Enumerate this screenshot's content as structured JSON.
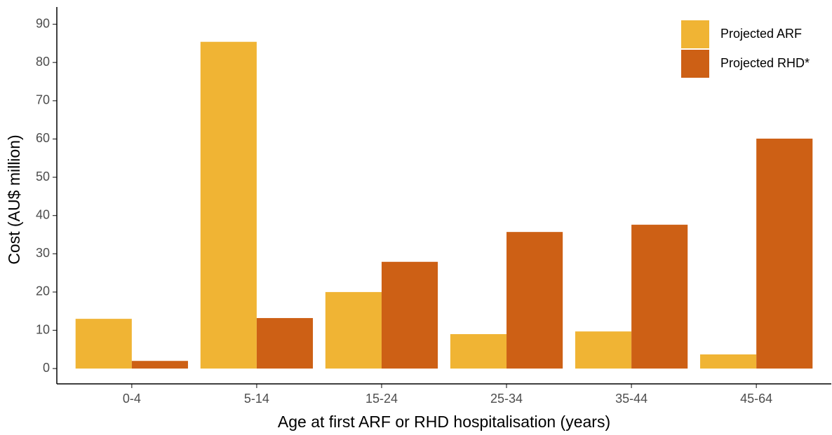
{
  "chart_data": {
    "type": "bar",
    "x_label": "Age at first ARF or RHD hospitalisation (years)",
    "y_label": "Cost (AU$ million)",
    "categories": [
      "0-4",
      "5-14",
      "15-24",
      "25-34",
      "35-44",
      "45-64"
    ],
    "series": [
      {
        "name": "Projected ARF",
        "color": "#f0b434",
        "values": [
          13.0,
          85.4,
          20.0,
          9.0,
          9.7,
          3.7
        ]
      },
      {
        "name": "Projected RHD*",
        "color": "#cd6015",
        "values": [
          2.0,
          13.2,
          27.9,
          35.7,
          37.6,
          60.1
        ]
      }
    ],
    "ylim": [
      -4,
      94.5
    ],
    "yticks": [
      0,
      10,
      20,
      30,
      40,
      50,
      60,
      70,
      80,
      90
    ],
    "legend": "top-right",
    "grid": false
  }
}
